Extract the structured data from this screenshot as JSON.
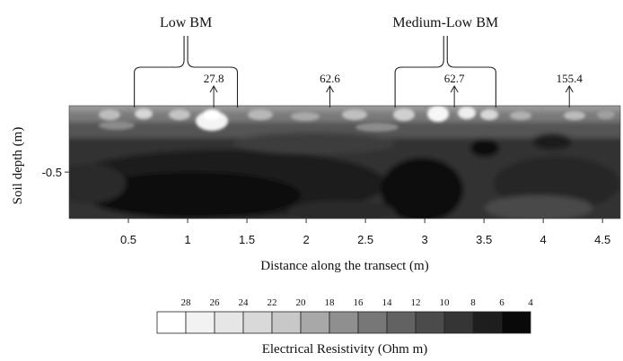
{
  "chart_data": {
    "type": "heatmap",
    "xlabel": "Distance along the transect (m)",
    "ylabel": "Soil depth (m)",
    "xlim": [
      0,
      4.65
    ],
    "ylim": [
      -0.85,
      0
    ],
    "x_ticks": [
      {
        "value": 0.5,
        "label": "0.5"
      },
      {
        "value": 1,
        "label": "1"
      },
      {
        "value": 1.5,
        "label": "1.5"
      },
      {
        "value": 2,
        "label": "2"
      },
      {
        "value": 2.5,
        "label": "2.5"
      },
      {
        "value": 3,
        "label": "3"
      },
      {
        "value": 3.5,
        "label": "3.5"
      },
      {
        "value": 4,
        "label": "4"
      },
      {
        "value": 4.5,
        "label": "4.5"
      }
    ],
    "y_ticks": [
      {
        "value": -0.5,
        "label": "-0.5"
      }
    ],
    "colorbar": {
      "label": "Electrical Resistivity (Ohm m)",
      "levels": [
        "28",
        "26",
        "24",
        "22",
        "20",
        "18",
        "16",
        "14",
        "12",
        "10",
        "8",
        "6",
        "4"
      ],
      "colors": [
        "#ffffff",
        "#f2f2f2",
        "#e6e6e6",
        "#d9d9d9",
        "#c8c8c8",
        "#a8a8a8",
        "#8f8f8f",
        "#777777",
        "#626262",
        "#4b4b4b",
        "#353535",
        "#1e1e1e",
        "#090909"
      ]
    },
    "annotations": [
      {
        "text": "27.8",
        "x": 1.22
      },
      {
        "text": "62.6",
        "x": 2.2
      },
      {
        "text": "62.7",
        "x": 3.25
      },
      {
        "text": "155.4",
        "x": 4.22
      }
    ],
    "groups": [
      {
        "label": "Low BM",
        "x_start": 0.55,
        "x_end": 1.42
      },
      {
        "label": "Medium-Low  BM",
        "x_start": 2.75,
        "x_end": 3.6
      }
    ]
  }
}
